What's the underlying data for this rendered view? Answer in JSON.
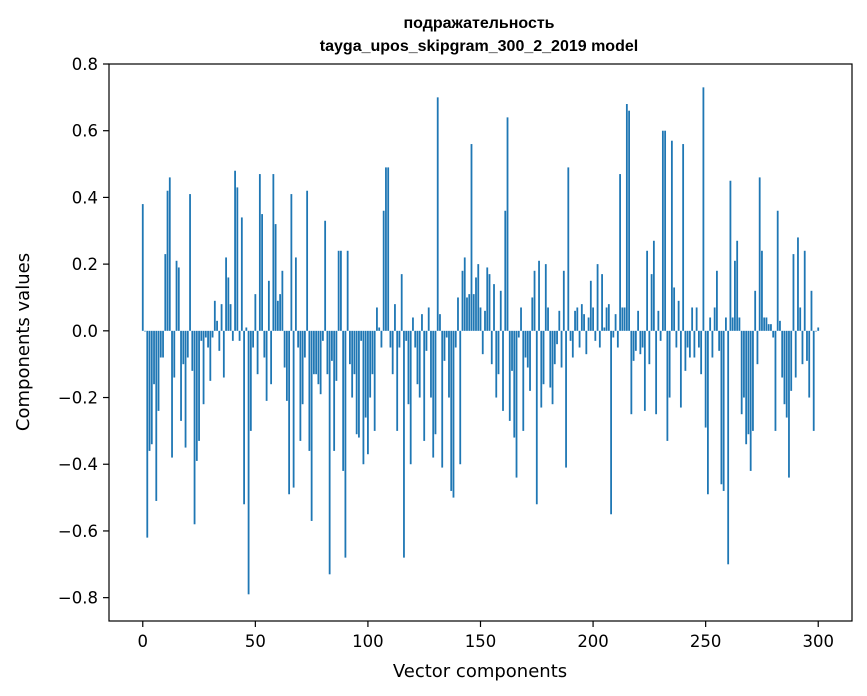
{
  "chart_data": {
    "type": "bar",
    "title": "подражательность",
    "subtitle": "tayga_upos_skipgram_300_2_2019 model",
    "xlabel": "Vector components",
    "ylabel": "Components values",
    "xlim": [
      -15,
      315
    ],
    "ylim": [
      -0.87,
      0.8
    ],
    "xticks": [
      0,
      50,
      100,
      150,
      200,
      250,
      300
    ],
    "xtick_labels": [
      "0",
      "50",
      "100",
      "150",
      "200",
      "250",
      "300"
    ],
    "yticks": [
      0.8,
      0.6,
      0.4,
      0.2,
      0.0,
      -0.2,
      -0.4,
      -0.6,
      -0.8
    ],
    "ytick_labels": [
      "0.8",
      "0.6",
      "0.4",
      "0.2",
      "0.0",
      "−0.2",
      "−0.4",
      "−0.6",
      "−0.8"
    ],
    "grid": false,
    "bar_color": "#1f77b4",
    "x_start": 0,
    "values": [
      0.38,
      0.0,
      -0.62,
      -0.36,
      -0.34,
      -0.16,
      -0.51,
      -0.24,
      -0.08,
      -0.08,
      0.23,
      0.42,
      0.46,
      -0.38,
      -0.14,
      0.21,
      0.19,
      -0.27,
      -0.1,
      -0.35,
      -0.08,
      0.41,
      -0.12,
      -0.58,
      -0.39,
      -0.33,
      -0.03,
      -0.22,
      -0.02,
      -0.05,
      -0.15,
      -0.02,
      0.09,
      0.03,
      -0.06,
      0.08,
      -0.14,
      0.22,
      0.16,
      0.08,
      -0.03,
      0.48,
      0.43,
      -0.03,
      0.34,
      -0.52,
      0.01,
      -0.79,
      -0.3,
      -0.05,
      0.11,
      -0.13,
      0.47,
      0.35,
      -0.08,
      -0.21,
      0.15,
      -0.16,
      0.47,
      0.32,
      0.09,
      0.11,
      0.18,
      -0.11,
      -0.21,
      -0.49,
      0.41,
      -0.47,
      0.22,
      -0.05,
      -0.33,
      -0.22,
      -0.08,
      0.42,
      -0.36,
      -0.57,
      -0.13,
      -0.13,
      -0.16,
      -0.19,
      -0.03,
      0.33,
      -0.13,
      -0.73,
      -0.09,
      -0.36,
      -0.15,
      0.24,
      0.24,
      -0.42,
      -0.68,
      0.24,
      -0.1,
      -0.2,
      -0.13,
      -0.31,
      -0.32,
      -0.03,
      -0.4,
      -0.26,
      -0.37,
      -0.2,
      -0.13,
      -0.3,
      0.07,
      0.01,
      -0.05,
      0.36,
      0.49,
      0.49,
      -0.05,
      -0.13,
      0.08,
      -0.3,
      -0.05,
      0.17,
      -0.68,
      -0.03,
      -0.22,
      -0.4,
      0.04,
      -0.05,
      -0.16,
      -0.2,
      0.05,
      -0.33,
      -0.06,
      0.07,
      -0.2,
      -0.38,
      -0.31,
      0.7,
      0.05,
      -0.41,
      -0.09,
      -0.02,
      -0.2,
      -0.48,
      -0.5,
      -0.05,
      0.1,
      -0.4,
      0.18,
      0.22,
      0.1,
      0.11,
      0.56,
      0.11,
      0.16,
      0.2,
      0.07,
      -0.07,
      0.06,
      0.19,
      0.17,
      -0.1,
      0.14,
      -0.2,
      -0.13,
      0.12,
      -0.24,
      0.36,
      0.64,
      -0.27,
      -0.12,
      -0.32,
      -0.44,
      -0.02,
      0.07,
      -0.3,
      -0.08,
      -0.11,
      -0.18,
      0.1,
      0.18,
      -0.52,
      0.21,
      -0.23,
      -0.16,
      0.2,
      0.07,
      -0.17,
      -0.22,
      -0.1,
      -0.04,
      0.06,
      -0.11,
      0.18,
      -0.41,
      0.49,
      -0.03,
      -0.08,
      0.06,
      0.07,
      -0.05,
      0.08,
      0.05,
      -0.07,
      0.04,
      0.15,
      0.07,
      -0.03,
      0.2,
      -0.05,
      0.17,
      0.01,
      0.07,
      0.08,
      -0.55,
      -0.02,
      0.05,
      -0.05,
      0.47,
      0.07,
      0.07,
      0.68,
      0.66,
      -0.25,
      -0.09,
      -0.06,
      0.06,
      -0.07,
      -0.05,
      -0.24,
      0.24,
      -0.1,
      0.17,
      0.27,
      -0.25,
      0.06,
      -0.03,
      0.6,
      0.6,
      -0.33,
      -0.2,
      0.57,
      0.13,
      -0.05,
      0.09,
      -0.23,
      0.56,
      -0.12,
      -0.05,
      -0.08,
      0.07,
      -0.08,
      0.07,
      -0.05,
      -0.13,
      0.73,
      -0.29,
      -0.49,
      0.04,
      -0.08,
      0.07,
      0.18,
      -0.06,
      -0.46,
      -0.48,
      0.04,
      -0.7,
      0.45,
      0.04,
      0.21,
      0.27,
      0.04,
      -0.25,
      -0.2,
      -0.34,
      -0.31,
      -0.42,
      -0.3,
      0.12,
      -0.1,
      0.46,
      0.24,
      0.04,
      0.04,
      0.02,
      0.02,
      -0.02,
      -0.3,
      0.36,
      0.03,
      -0.14,
      -0.22,
      -0.26,
      -0.44,
      -0.18,
      0.23,
      -0.14,
      0.28,
      0.07,
      -0.1,
      0.24,
      -0.09,
      -0.2,
      0.12,
      -0.3,
      0.0,
      0.01
    ]
  }
}
